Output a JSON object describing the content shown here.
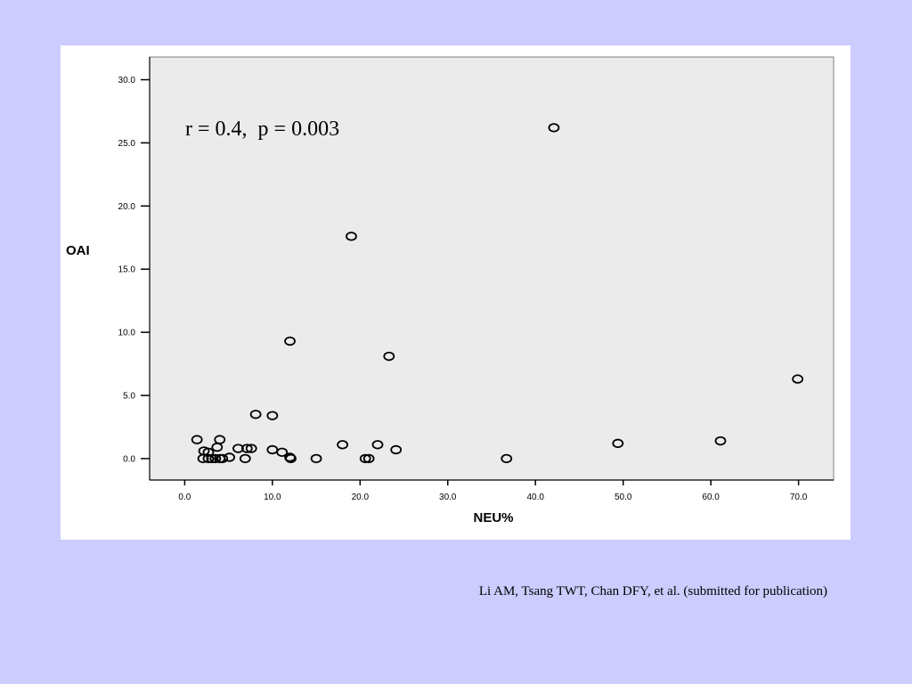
{
  "chart_data": {
    "type": "scatter",
    "title": "",
    "xlabel": "NEU%",
    "ylabel": "OAI",
    "xlim": [
      -4,
      74
    ],
    "ylim": [
      -1.7,
      31.8
    ],
    "x_ticks": [
      0,
      10,
      20,
      30,
      40,
      50,
      60,
      70
    ],
    "y_ticks": [
      0,
      5,
      10,
      15,
      20,
      25,
      30
    ],
    "x_tick_labels": [
      "0.0",
      "10.0",
      "20.0",
      "30.0",
      "40.0",
      "50.0",
      "60.0",
      "70.0"
    ],
    "y_tick_labels": [
      "0.0",
      "5.0",
      "10.0",
      "15.0",
      "20.0",
      "25.0",
      "30.0"
    ],
    "annotation": "r = 0.4,  p = 0.003",
    "marker": "open-circle",
    "grid": false,
    "points": [
      {
        "x": 42.1,
        "y": 26.2
      },
      {
        "x": 19.0,
        "y": 17.6
      },
      {
        "x": 12.0,
        "y": 9.3
      },
      {
        "x": 23.3,
        "y": 8.1
      },
      {
        "x": 69.9,
        "y": 6.3
      },
      {
        "x": 8.1,
        "y": 3.5
      },
      {
        "x": 10.0,
        "y": 3.4
      },
      {
        "x": 1.4,
        "y": 1.5
      },
      {
        "x": 4.0,
        "y": 1.5
      },
      {
        "x": 18.0,
        "y": 1.1
      },
      {
        "x": 22.0,
        "y": 1.1
      },
      {
        "x": 49.4,
        "y": 1.2
      },
      {
        "x": 61.1,
        "y": 1.4
      },
      {
        "x": 3.7,
        "y": 0.9
      },
      {
        "x": 6.1,
        "y": 0.8
      },
      {
        "x": 7.1,
        "y": 0.8
      },
      {
        "x": 7.6,
        "y": 0.8
      },
      {
        "x": 2.2,
        "y": 0.6
      },
      {
        "x": 2.7,
        "y": 0.5
      },
      {
        "x": 10.0,
        "y": 0.7
      },
      {
        "x": 11.1,
        "y": 0.5
      },
      {
        "x": 24.1,
        "y": 0.7
      },
      {
        "x": 5.1,
        "y": 0.1
      },
      {
        "x": 12.0,
        "y": 0.1
      },
      {
        "x": 2.1,
        "y": 0.0
      },
      {
        "x": 2.7,
        "y": 0.0
      },
      {
        "x": 3.1,
        "y": 0.0
      },
      {
        "x": 3.5,
        "y": 0.0
      },
      {
        "x": 4.0,
        "y": 0.0
      },
      {
        "x": 4.3,
        "y": 0.0
      },
      {
        "x": 6.9,
        "y": 0.0
      },
      {
        "x": 12.1,
        "y": 0.0
      },
      {
        "x": 15.0,
        "y": 0.0
      },
      {
        "x": 20.6,
        "y": 0.0
      },
      {
        "x": 21.0,
        "y": 0.0
      },
      {
        "x": 36.7,
        "y": 0.0
      }
    ]
  },
  "citation": "Li AM, Tsang TWT, Chan DFY, et al. (submitted for publication)",
  "colors": {
    "slide_background": "#ccccff",
    "panel_background": "#ffffff",
    "plot_area": "#ebebeb",
    "axis": "#000000"
  }
}
